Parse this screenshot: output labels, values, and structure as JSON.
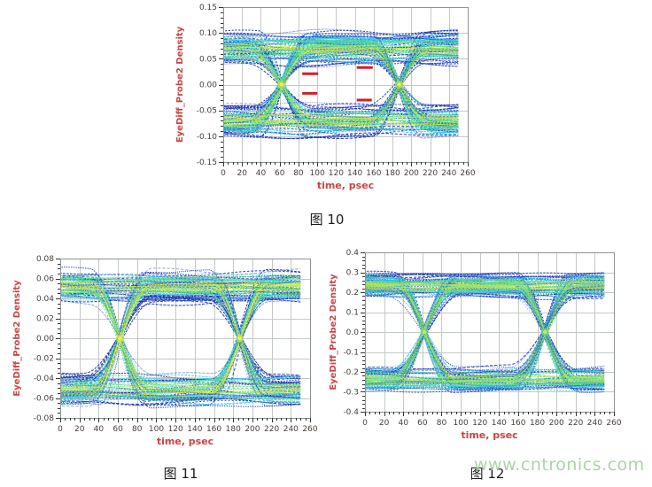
{
  "page": {
    "background": "#ffffff"
  },
  "watermark": {
    "text": "www.cntronics.com",
    "color": "#9ace94"
  },
  "styles": {
    "axis_label_color": "#cc4444",
    "tick_label_color": "#46403c",
    "grid_color": "#c3c9c7",
    "border_color": "#8d9492",
    "tick_color": "#333333",
    "mask_color": "#cc2228"
  },
  "figures": [
    {
      "caption": "图 10"
    },
    {
      "caption": "图 11"
    },
    {
      "caption": "图 12"
    }
  ],
  "chart_data": [
    {
      "type": "heatmap",
      "subtype": "eye-diagram-density",
      "title": "",
      "xlabel": "time, psec",
      "ylabel": "EyeDiff_Probe2 Density",
      "grid": true,
      "xlim": [
        0,
        260
      ],
      "ylim": [
        -0.15,
        0.15
      ],
      "xticks": [
        0,
        20,
        40,
        60,
        80,
        100,
        120,
        140,
        160,
        180,
        200,
        220,
        240,
        260
      ],
      "x_minor_step": 5,
      "ytick_values": [
        0.15,
        0.1,
        0.05,
        0.0,
        -0.05,
        -0.1,
        -0.15
      ],
      "ytick_labels": [
        "0.15",
        "0.10",
        "0.05",
        "0.00",
        "-0.05",
        "-0.10",
        "-0.15"
      ],
      "y_minor_divs": 5,
      "eye": {
        "crossings_psec": [
          62,
          187
        ],
        "bit_period_psec": 125,
        "signal_x_range_psec": [
          0,
          250
        ],
        "rail_level": 0.07,
        "rail_band_halfwidth": 0.031,
        "transition_halfwidth_psec": 31,
        "density_palette": [
          "#1e34b2",
          "#3ec7e6",
          "#57da90",
          "#c9e94f"
        ],
        "crossing_hot_colors": [
          "#b9e457",
          "#f2ec52"
        ]
      },
      "mask_marks": [
        {
          "x1": 84,
          "x2": 101,
          "y": 0.021
        },
        {
          "x1": 84,
          "x2": 100,
          "y": -0.017
        },
        {
          "x1": 142,
          "x2": 159,
          "y": 0.033
        },
        {
          "x1": 142,
          "x2": 158,
          "y": -0.03
        }
      ]
    },
    {
      "type": "heatmap",
      "subtype": "eye-diagram-density",
      "title": "",
      "xlabel": "time, psec",
      "ylabel": "EyeDiff_Probe2 Density",
      "grid": true,
      "xlim": [
        0,
        260
      ],
      "ylim": [
        -0.08,
        0.08
      ],
      "xticks": [
        0,
        20,
        40,
        60,
        80,
        100,
        120,
        140,
        160,
        180,
        200,
        220,
        240,
        260
      ],
      "x_minor_step": 5,
      "ytick_values": [
        0.08,
        0.06,
        0.04,
        0.02,
        0.0,
        -0.02,
        -0.04,
        -0.06,
        -0.08
      ],
      "ytick_labels": [
        "0.08",
        "0.06",
        "0.04",
        "0.02",
        "0.00",
        "-0.02",
        "-0.04",
        "-0.06",
        "-0.08"
      ],
      "y_minor_divs": 4,
      "eye": {
        "crossings_psec": [
          62,
          187
        ],
        "bit_period_psec": 125,
        "signal_x_range_psec": [
          0,
          250
        ],
        "rail_level": 0.052,
        "rail_band_halfwidth": 0.016,
        "transition_halfwidth_psec": 29,
        "density_palette": [
          "#2038b4",
          "#43cbe4",
          "#5fdc8c",
          "#e2ee50"
        ],
        "crossing_hot_colors": [
          "#cdea50",
          "#f6ef4e"
        ]
      },
      "mask_marks": []
    },
    {
      "type": "heatmap",
      "subtype": "eye-diagram-density",
      "title": "",
      "xlabel": "time, psec",
      "ylabel": "EyeDiff_Probe2 Density",
      "grid": true,
      "xlim": [
        0,
        260
      ],
      "ylim": [
        -0.4,
        0.4
      ],
      "xticks": [
        0,
        20,
        40,
        60,
        80,
        100,
        120,
        140,
        160,
        180,
        200,
        220,
        240,
        260
      ],
      "x_minor_step": 5,
      "ytick_values": [
        0.4,
        0.3,
        0.2,
        0.1,
        0.0,
        -0.1,
        -0.2,
        -0.3,
        -0.4
      ],
      "ytick_labels": [
        "0.4",
        "0.3",
        "0.2",
        "0.1",
        "0.0",
        "-0.1",
        "-0.2",
        "-0.3",
        "-0.4"
      ],
      "y_minor_divs": 5,
      "eye": {
        "crossings_psec": [
          62,
          188
        ],
        "bit_period_psec": 126,
        "signal_x_range_psec": [
          0,
          250
        ],
        "rail_level": 0.235,
        "rail_band_halfwidth": 0.06,
        "transition_halfwidth_psec": 31,
        "density_palette": [
          "#2241b6",
          "#3fc8e2",
          "#5fd98a",
          "#b7e556"
        ],
        "crossing_hot_colors": [
          "#7adf7a",
          "#cce858"
        ]
      },
      "mask_marks": []
    }
  ]
}
